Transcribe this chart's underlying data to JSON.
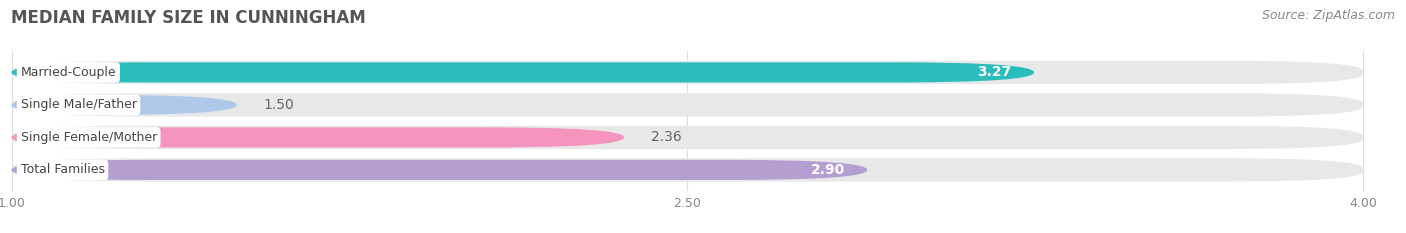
{
  "title": "MEDIAN FAMILY SIZE IN CUNNINGHAM",
  "source": "Source: ZipAtlas.com",
  "categories": [
    "Married-Couple",
    "Single Male/Father",
    "Single Female/Mother",
    "Total Families"
  ],
  "values": [
    3.27,
    1.5,
    2.36,
    2.9
  ],
  "bar_colors": [
    "#2bbcbc",
    "#adc8e8",
    "#f594bc",
    "#b59ed0"
  ],
  "bar_bg_color": "#e8e8e8",
  "xlim_min": 1.0,
  "xlim_max": 4.0,
  "xticks": [
    1.0,
    2.5,
    4.0
  ],
  "xtick_labels": [
    "1.00",
    "2.50",
    "4.00"
  ],
  "value_label_colors": [
    "#ffffff",
    "#666666",
    "#666666",
    "#ffffff"
  ],
  "value_label_inside": [
    true,
    false,
    false,
    true
  ],
  "background_color": "#ffffff",
  "title_color": "#555555",
  "title_fontsize": 12,
  "source_fontsize": 9,
  "bar_height": 0.62,
  "bar_gap": 0.38
}
